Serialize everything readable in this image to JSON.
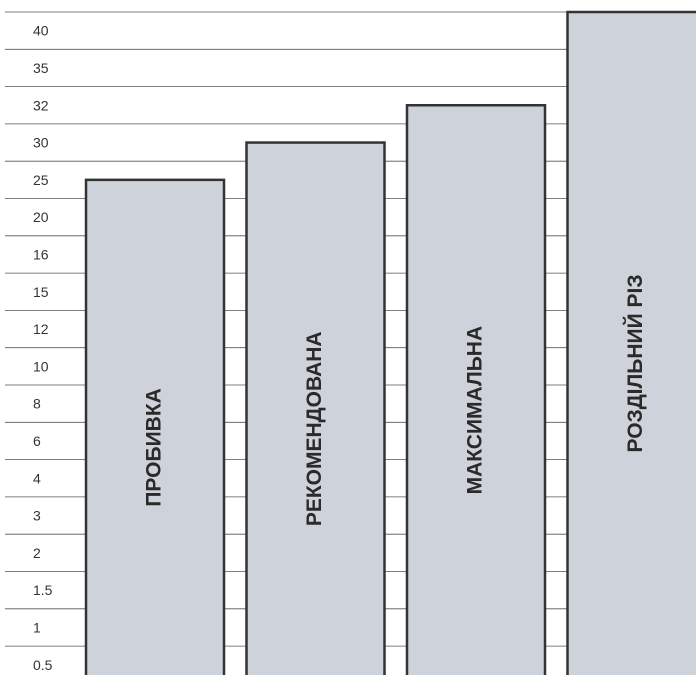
{
  "chart_data": {
    "type": "bar",
    "title": "",
    "xlabel": "",
    "ylabel": "",
    "y_axis": {
      "scale": "categorical",
      "ticks_bottom_to_top": [
        "0.5",
        "1",
        "1.5",
        "2",
        "3",
        "4",
        "6",
        "8",
        "10",
        "12",
        "15",
        "16",
        "20",
        "25",
        "30",
        "32",
        "35",
        "40"
      ]
    },
    "grid": true,
    "categories": [
      "ПРОБИВКА",
      "РЕКОМЕНДОВАНА",
      "МАКСИМАЛЬНА",
      "РОЗДІЛЬНИЙ РІЗ"
    ],
    "values": [
      25,
      30,
      32,
      40
    ],
    "colors": {
      "bar_fill": "#cdd2db",
      "bar_stroke": "#333333",
      "grid": "#555555",
      "text": "#333333"
    }
  }
}
